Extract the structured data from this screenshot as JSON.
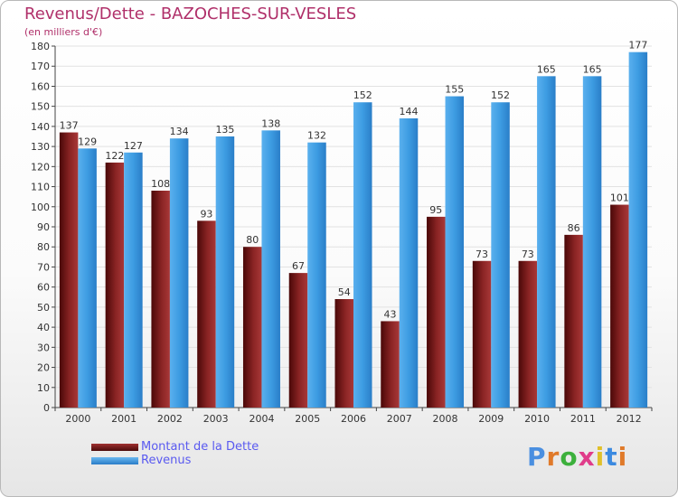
{
  "title": "Revenus/Dette - BAZOCHES-SUR-VESLES",
  "subtitle": "(en milliers d'€)",
  "legend": [
    {
      "label": "Montant de la Dette",
      "color": "#7a1a1a"
    },
    {
      "label": "Revenus",
      "color": "#3b9ae0"
    }
  ],
  "logo": {
    "text": "Proxiti",
    "colors": [
      "#4a8fe0",
      "#e07a2a",
      "#3cb03c",
      "#e03c8a",
      "#e0c02a",
      "#3c8ae0",
      "#e07a2a"
    ]
  },
  "chart_data": {
    "type": "bar",
    "title": "Revenus/Dette - BAZOCHES-SUR-VESLES",
    "ylabel": "(en milliers d'€)",
    "xlabel": "",
    "ylim": [
      0,
      180
    ],
    "ytick_step": 10,
    "grid": true,
    "categories": [
      "2000",
      "2001",
      "2002",
      "2003",
      "2004",
      "2005",
      "2006",
      "2007",
      "2008",
      "2009",
      "2010",
      "2011",
      "2012"
    ],
    "series": [
      {
        "name": "Montant de la Dette",
        "values": [
          137,
          122,
          108,
          93,
          80,
          67,
          54,
          43,
          95,
          73,
          73,
          86,
          101
        ]
      },
      {
        "name": "Revenus",
        "values": [
          129,
          127,
          134,
          135,
          138,
          132,
          152,
          144,
          155,
          152,
          165,
          165,
          177
        ]
      }
    ]
  }
}
